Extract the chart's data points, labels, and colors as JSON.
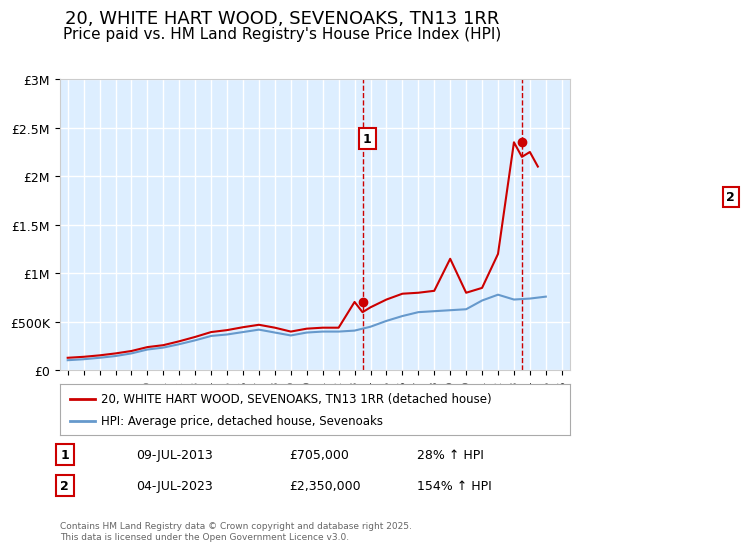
{
  "title": "20, WHITE HART WOOD, SEVENOAKS, TN13 1RR",
  "subtitle": "Price paid vs. HM Land Registry's House Price Index (HPI)",
  "title_fontsize": 13,
  "subtitle_fontsize": 11,
  "background_color": "#ffffff",
  "plot_bg_color": "#ddeeff",
  "grid_color": "#ffffff",
  "ylabel_color": "#333333",
  "legend_label_red": "20, WHITE HART WOOD, SEVENOAKS, TN13 1RR (detached house)",
  "legend_label_blue": "HPI: Average price, detached house, Sevenoaks",
  "footnote": "Contains HM Land Registry data © Crown copyright and database right 2025.\nThis data is licensed under the Open Government Licence v3.0.",
  "point1_date": "09-JUL-2013",
  "point1_price": 705000,
  "point1_label": "28% ↑ HPI",
  "point2_date": "04-JUL-2023",
  "point2_price": 2350000,
  "point2_label": "154% ↑ HPI",
  "xlim": [
    1994.5,
    2026.5
  ],
  "ylim": [
    0,
    3000000
  ],
  "yticks": [
    0,
    500000,
    1000000,
    1500000,
    2000000,
    2500000,
    3000000
  ],
  "ytick_labels": [
    "£0",
    "£500K",
    "£1M",
    "£1.5M",
    "£2M",
    "£2.5M",
    "£3M"
  ],
  "xticks": [
    1995,
    1996,
    1997,
    1998,
    1999,
    2000,
    2001,
    2002,
    2003,
    2004,
    2005,
    2006,
    2007,
    2008,
    2009,
    2010,
    2011,
    2012,
    2013,
    2014,
    2015,
    2016,
    2017,
    2018,
    2019,
    2020,
    2021,
    2022,
    2023,
    2024,
    2025,
    2026
  ],
  "red_color": "#cc0000",
  "blue_color": "#6699cc",
  "dashed_color": "#cc0000",
  "hpi_years": [
    1995,
    1996,
    1997,
    1998,
    1999,
    2000,
    2001,
    2002,
    2003,
    2004,
    2005,
    2006,
    2007,
    2008,
    2009,
    2010,
    2011,
    2012,
    2013,
    2014,
    2015,
    2016,
    2017,
    2018,
    2019,
    2020,
    2021,
    2022,
    2023,
    2024,
    2025
  ],
  "hpi_values": [
    105000,
    115000,
    130000,
    148000,
    175000,
    215000,
    235000,
    270000,
    310000,
    355000,
    370000,
    395000,
    420000,
    390000,
    360000,
    390000,
    400000,
    400000,
    410000,
    450000,
    510000,
    560000,
    600000,
    610000,
    620000,
    630000,
    720000,
    780000,
    730000,
    740000,
    760000
  ],
  "red_years": [
    1995,
    1996,
    1997,
    1998,
    1999,
    2000,
    2001,
    2002,
    2003,
    2004,
    2005,
    2006,
    2007,
    2008,
    2009,
    2010,
    2011,
    2012,
    2013,
    2013.5,
    2014,
    2015,
    2016,
    2017,
    2018,
    2019,
    2020,
    2021,
    2022,
    2023,
    2023.5,
    2024,
    2024.5
  ],
  "red_values": [
    130000,
    140000,
    155000,
    175000,
    200000,
    240000,
    260000,
    300000,
    345000,
    395000,
    415000,
    445000,
    470000,
    440000,
    400000,
    430000,
    440000,
    440000,
    705000,
    600000,
    650000,
    730000,
    790000,
    800000,
    820000,
    1150000,
    800000,
    850000,
    1200000,
    2350000,
    2200000,
    2250000,
    2100000
  ]
}
